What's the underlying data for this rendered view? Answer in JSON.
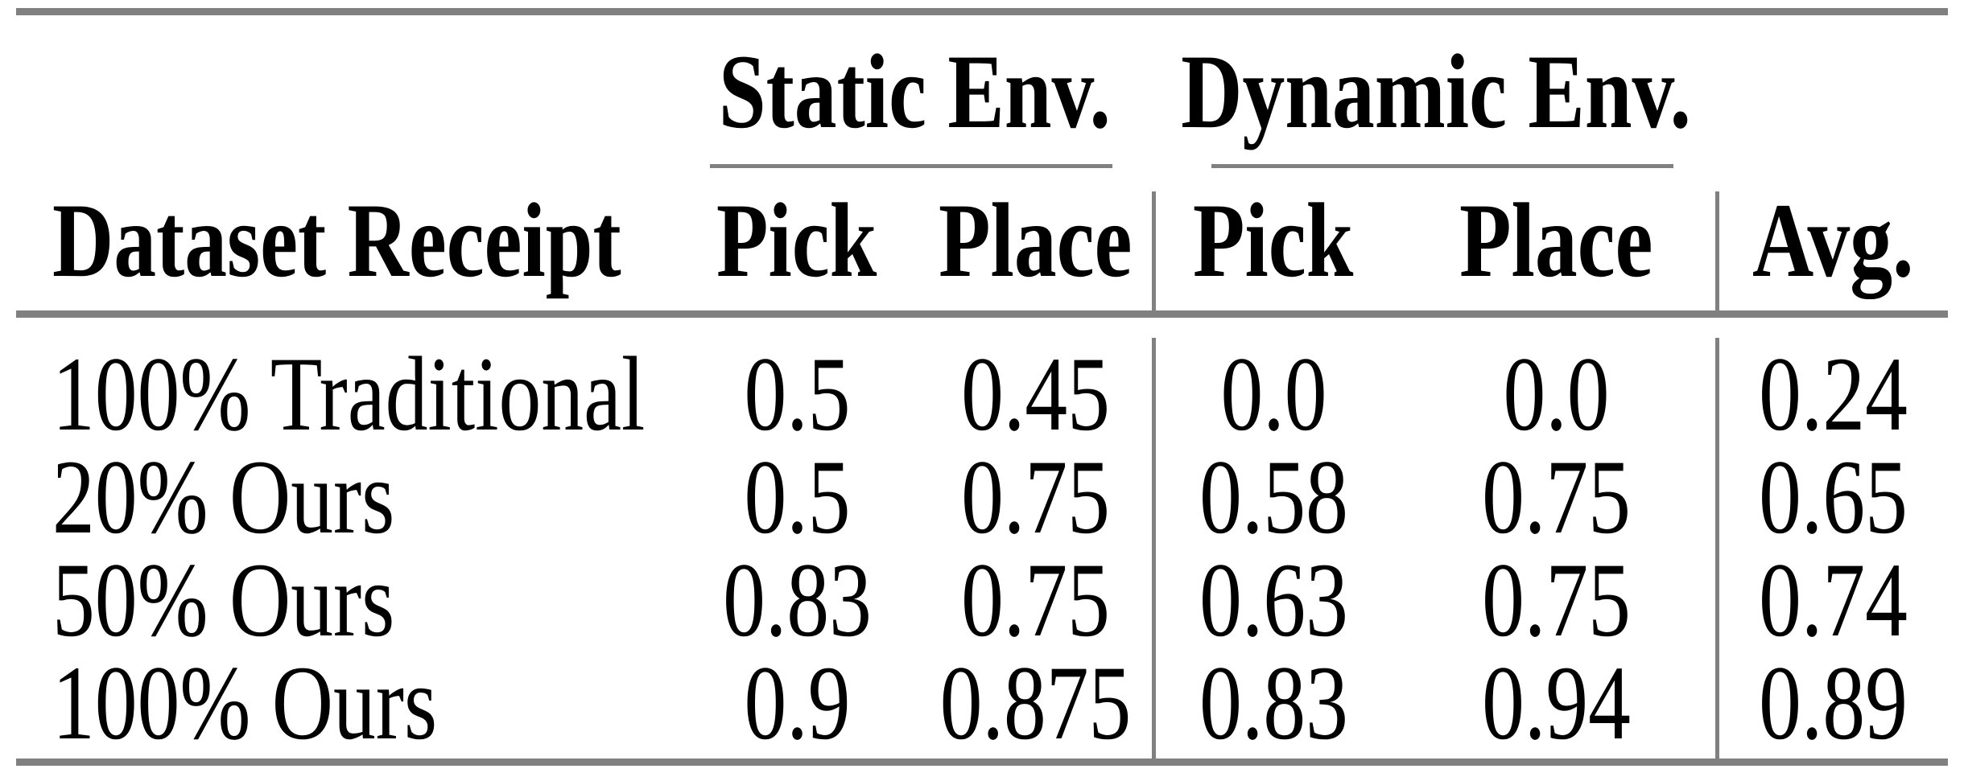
{
  "colors": {
    "rule_gray": "#808080",
    "text": "#000000",
    "background": "#ffffff"
  },
  "table": {
    "group_headers": [
      {
        "label": "Static Env."
      },
      {
        "label": "Dynamic Env."
      }
    ],
    "column_headers": {
      "dataset": "Dataset Receipt",
      "static_pick": "Pick",
      "static_place": "Place",
      "dynamic_pick": "Pick",
      "dynamic_place": "Place",
      "avg": "Avg."
    },
    "rows": [
      {
        "label": "100% Traditional",
        "static_pick": "0.5",
        "static_place": "0.45",
        "dynamic_pick": "0.0",
        "dynamic_place": "0.0",
        "avg": "0.24"
      },
      {
        "label": "20% Ours",
        "static_pick": "0.5",
        "static_place": "0.75",
        "dynamic_pick": "0.58",
        "dynamic_place": "0.75",
        "avg": "0.65"
      },
      {
        "label": "50% Ours",
        "static_pick": "0.83",
        "static_place": "0.75",
        "dynamic_pick": "0.63",
        "dynamic_place": "0.75",
        "avg": "0.74"
      },
      {
        "label": "100% Ours",
        "static_pick": "0.9",
        "static_place": "0.875",
        "dynamic_pick": "0.83",
        "dynamic_place": "0.94",
        "avg": "0.89"
      }
    ]
  }
}
